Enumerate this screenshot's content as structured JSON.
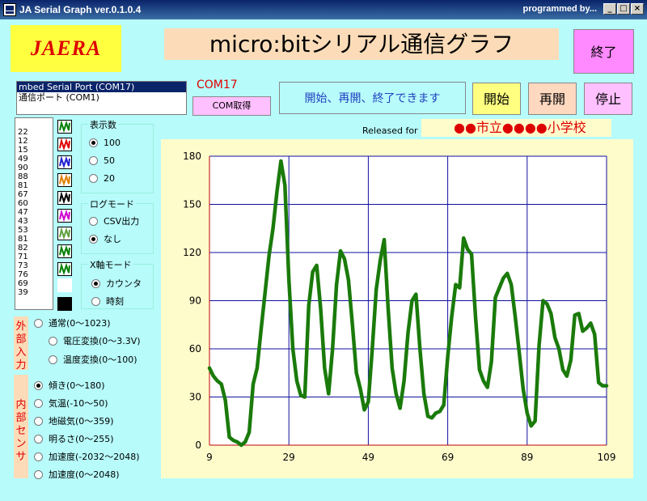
{
  "window": {
    "title": "JA Serial Graph  ver.0.1.0.4",
    "title_right": "programmed by...",
    "min_glyph": "_",
    "max_glyph": "□",
    "close_glyph": "×"
  },
  "logo": {
    "text": "JAERA"
  },
  "app_title": "micro:bitシリアル通信グラフ",
  "buttons": {
    "exit": "終了",
    "com_get": "COM取得",
    "start": "開始",
    "resume": "再開",
    "stop": "停止"
  },
  "ports": [
    "mbed Serial Port (COM17)",
    "通信ポート (COM1)"
  ],
  "com_label": "COM17",
  "status_text": "開始、再開、終了できます",
  "released_for": "Released for",
  "school": "●●市立●●●●小学校",
  "values": [
    "22",
    "12",
    "15",
    "49",
    "90",
    "88",
    "81",
    "67",
    "60",
    "47",
    "43",
    "53",
    "81",
    "82",
    "71",
    "73",
    "76",
    "69",
    "39"
  ],
  "swatch_colors": [
    "#008000",
    "#e00000",
    "#2020d0",
    "#e08000",
    "#000000",
    "#d000d0",
    "#60a040",
    "#008000",
    "#008000"
  ],
  "display_count": {
    "title": "表示数",
    "options": [
      "100",
      "50",
      "20"
    ],
    "selected": 0
  },
  "log_mode": {
    "title": "ログモード",
    "options": [
      "CSV出力",
      "なし"
    ],
    "selected": 1
  },
  "x_mode": {
    "title": "X軸モード",
    "options": [
      "カウンタ",
      "時刻"
    ],
    "selected": 0
  },
  "external_input": {
    "label": "外部入力",
    "options": [
      "通常(0〜1023)",
      "電圧変換(0〜3.3V)",
      "温度変換(0〜100)"
    ],
    "selected": -1
  },
  "internal_sensor": {
    "label": "内部センサ",
    "options": [
      "傾き(0〜180)",
      "気温(-10〜50)",
      "地磁気(0〜359)",
      "明るさ(0〜255)",
      "加速度(-2032〜2048)",
      "加速度(0〜2048)"
    ],
    "selected": 0
  },
  "chart_data": {
    "type": "line",
    "xlim": [
      9,
      109
    ],
    "ylim": [
      0,
      180
    ],
    "xticks": [
      9,
      29,
      49,
      69,
      89,
      109
    ],
    "yticks": [
      0,
      30,
      60,
      90,
      120,
      150,
      180
    ],
    "grid": true,
    "series": [
      {
        "color": "#1a7a0a",
        "x": [
          9,
          10,
          11,
          12,
          13,
          14,
          15,
          16,
          17,
          18,
          19,
          20,
          21,
          22,
          23,
          24,
          25,
          26,
          27,
          28,
          29,
          30,
          31,
          32,
          33,
          34,
          35,
          36,
          37,
          38,
          39,
          40,
          41,
          42,
          43,
          44,
          45,
          46,
          47,
          48,
          49,
          50,
          51,
          52,
          53,
          54,
          55,
          56,
          57,
          58,
          59,
          60,
          61,
          62,
          63,
          64,
          65,
          66,
          67,
          68,
          69,
          70,
          71,
          72,
          73,
          74,
          75,
          76,
          77,
          78,
          79,
          80,
          81,
          82,
          83,
          84,
          85,
          86,
          87,
          88,
          89,
          90,
          91,
          92,
          93,
          94,
          95,
          96,
          97,
          98,
          99,
          100,
          101,
          102,
          103,
          104,
          105,
          106,
          107,
          108,
          109
        ],
        "y": [
          48,
          43,
          40,
          38,
          28,
          5,
          3,
          2,
          0,
          2,
          8,
          38,
          48,
          72,
          95,
          118,
          135,
          158,
          177,
          162,
          103,
          60,
          40,
          31,
          30,
          87,
          108,
          112,
          85,
          48,
          32,
          60,
          100,
          121,
          116,
          103,
          75,
          45,
          35,
          22,
          27,
          60,
          97,
          115,
          128,
          85,
          48,
          32,
          23,
          40,
          70,
          90,
          94,
          60,
          32,
          18,
          17,
          20,
          21,
          25,
          55,
          80,
          100,
          98,
          129,
          122,
          119,
          80,
          47,
          40,
          36,
          52,
          92,
          98,
          104,
          107,
          100,
          80,
          58,
          35,
          20,
          12,
          15,
          62,
          90,
          88,
          82,
          67,
          60,
          47,
          43,
          53,
          81,
          82,
          71,
          73,
          76,
          69,
          39,
          37,
          37
        ]
      }
    ]
  }
}
